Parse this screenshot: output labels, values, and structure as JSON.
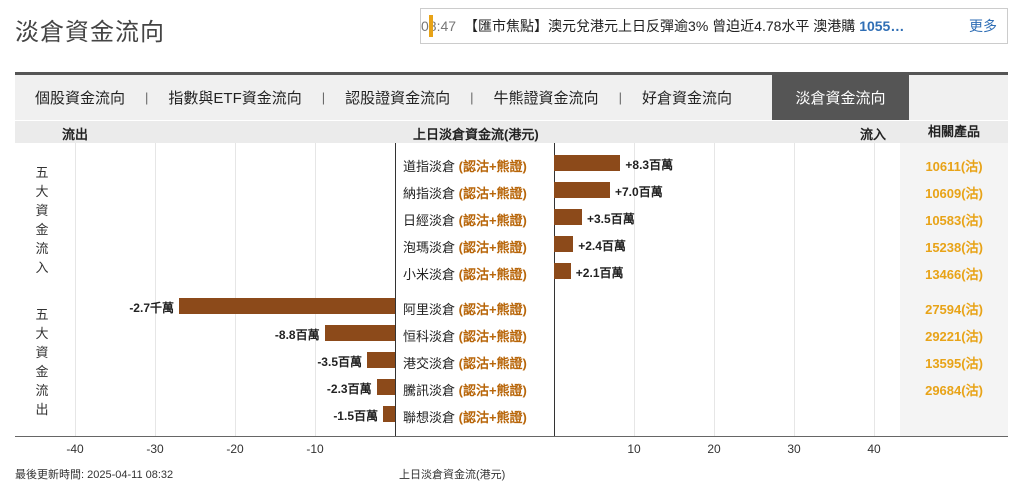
{
  "page_title": "淡倉資金流向",
  "ticker": {
    "time": "08:47",
    "headline": "【匯市焦點】澳元兌港元上日反彈逾3% 曾迫近4.78水平 澳港購",
    "highlight": "1055…",
    "more": "更多"
  },
  "tabs": [
    {
      "label": "個股資金流向"
    },
    {
      "label": "指數與ETF資金流向"
    },
    {
      "label": "認股證資金流向"
    },
    {
      "label": "牛熊證資金流向"
    },
    {
      "label": "好倉資金流向"
    },
    {
      "label": "淡倉資金流向"
    }
  ],
  "tab_separator": "|",
  "header": {
    "outflow": "流出",
    "center": "上日淡倉資金流(港元)",
    "inflow": "流入",
    "products": "相關產品"
  },
  "groups": {
    "inflow_label": [
      "五",
      "大",
      "資",
      "金",
      "流",
      "入"
    ],
    "outflow_label": [
      "五",
      "大",
      "資",
      "金",
      "流",
      "出"
    ]
  },
  "chart_data": {
    "type": "bar",
    "orientation": "horizontal",
    "unit": "百萬港元",
    "xlabel": "上日淡倉資金流(港元)",
    "xlim": [
      -40,
      40
    ],
    "x_ticks": [
      -40,
      -30,
      -20,
      -10,
      10,
      20,
      30,
      40
    ],
    "x_tick_labels": [
      "-40",
      "-30",
      "-20",
      "-10",
      "10",
      "20",
      "30",
      "40"
    ],
    "rows": [
      {
        "name": "道指淡倉",
        "type": "(認沽+熊證)",
        "value": 8.3,
        "label": "+8.3百萬",
        "product": "10611(沽)"
      },
      {
        "name": "納指淡倉",
        "type": "(認沽+熊證)",
        "value": 7.0,
        "label": "+7.0百萬",
        "product": "10609(沽)"
      },
      {
        "name": "日經淡倉",
        "type": "(認沽+熊證)",
        "value": 3.5,
        "label": "+3.5百萬",
        "product": "10583(沽)"
      },
      {
        "name": "泡瑪淡倉",
        "type": "(認沽+熊證)",
        "value": 2.4,
        "label": "+2.4百萬",
        "product": "15238(沽)"
      },
      {
        "name": "小米淡倉",
        "type": "(認沽+熊證)",
        "value": 2.1,
        "label": "+2.1百萬",
        "product": "13466(沽)"
      },
      {
        "name": "阿里淡倉",
        "type": "(認沽+熊證)",
        "value": -27,
        "label": "-2.7千萬",
        "product": "27594(沽)"
      },
      {
        "name": "恒科淡倉",
        "type": "(認沽+熊證)",
        "value": -8.8,
        "label": "-8.8百萬",
        "product": "29221(沽)"
      },
      {
        "name": "港交淡倉",
        "type": "(認沽+熊證)",
        "value": -3.5,
        "label": "-3.5百萬",
        "product": "13595(沽)"
      },
      {
        "name": "騰訊淡倉",
        "type": "(認沽+熊證)",
        "value": -2.3,
        "label": "-2.3百萬",
        "product": "29684(沽)"
      },
      {
        "name": "聯想淡倉",
        "type": "(認沽+熊證)",
        "value": -1.5,
        "label": "-1.5百萬",
        "product": ""
      }
    ]
  },
  "footer": {
    "updated": "最後更新時間: 2025-04-11 08:32",
    "axis_title": "上日淡倉資金流(港元)"
  },
  "colors": {
    "bar": "#8c4a1a",
    "accent": "#e8a317",
    "product": "#e8a317",
    "type_label": "#b8660a",
    "active_tab": "#555555"
  }
}
